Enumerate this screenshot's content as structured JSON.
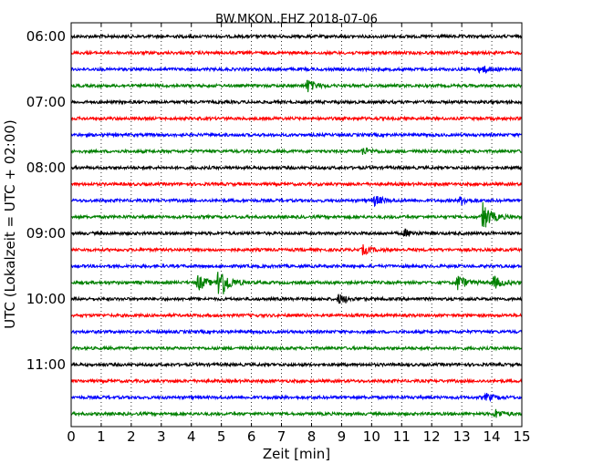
{
  "chart_data": {
    "type": "line",
    "title": "BW.MKON..EHZ 2018-07-06",
    "xlabel": "Zeit  [min]",
    "ylabel": "UTC (Lokalzeit = UTC + 02:00)",
    "xlim": [
      0,
      15
    ],
    "x_ticks": [
      "0",
      "1",
      "2",
      "3",
      "4",
      "5",
      "6",
      "7",
      "8",
      "9",
      "10",
      "11",
      "12",
      "13",
      "14",
      "15"
    ],
    "y_tick_labels": [
      "06:00",
      "07:00",
      "08:00",
      "09:00",
      "10:00",
      "11:00"
    ],
    "grid": "vertical dotted",
    "trace_interval_min": 15,
    "series": [
      {
        "start": "06:00",
        "color": "#000000",
        "events": []
      },
      {
        "start": "06:15",
        "color": "#ff0000",
        "events": []
      },
      {
        "start": "06:30",
        "color": "#0000ff",
        "events": [
          {
            "t": 13.6,
            "amp": 0.3
          }
        ]
      },
      {
        "start": "06:45",
        "color": "#008000",
        "events": [
          {
            "t": 7.85,
            "amp": 0.45
          }
        ]
      },
      {
        "start": "07:00",
        "color": "#000000",
        "events": []
      },
      {
        "start": "07:15",
        "color": "#ff0000",
        "events": []
      },
      {
        "start": "07:30",
        "color": "#0000ff",
        "events": []
      },
      {
        "start": "07:45",
        "color": "#008000",
        "events": [
          {
            "t": 9.7,
            "amp": 0.25
          }
        ]
      },
      {
        "start": "08:00",
        "color": "#000000",
        "events": []
      },
      {
        "start": "08:15",
        "color": "#ff0000",
        "events": []
      },
      {
        "start": "08:30",
        "color": "#0000ff",
        "events": [
          {
            "t": 10.1,
            "amp": 0.35
          },
          {
            "t": 12.95,
            "amp": 0.3
          }
        ]
      },
      {
        "start": "08:45",
        "color": "#008000",
        "events": [
          {
            "t": 13.7,
            "amp": 1.0
          }
        ]
      },
      {
        "start": "09:00",
        "color": "#000000",
        "events": [
          {
            "t": 11.1,
            "amp": 0.25
          }
        ]
      },
      {
        "start": "09:15",
        "color": "#ff0000",
        "events": [
          {
            "t": 9.7,
            "amp": 0.3
          }
        ]
      },
      {
        "start": "09:30",
        "color": "#0000ff",
        "events": []
      },
      {
        "start": "09:45",
        "color": "#008000",
        "events": [
          {
            "t": 4.2,
            "amp": 0.6
          },
          {
            "t": 4.9,
            "amp": 1.5
          },
          {
            "t": 12.85,
            "amp": 0.55
          },
          {
            "t": 14.05,
            "amp": 0.45
          }
        ]
      },
      {
        "start": "10:00",
        "color": "#000000",
        "events": [
          {
            "t": 8.9,
            "amp": 0.35
          }
        ]
      },
      {
        "start": "10:15",
        "color": "#ff0000",
        "events": []
      },
      {
        "start": "10:30",
        "color": "#0000ff",
        "events": []
      },
      {
        "start": "10:45",
        "color": "#008000",
        "events": []
      },
      {
        "start": "11:00",
        "color": "#000000",
        "events": []
      },
      {
        "start": "11:15",
        "color": "#ff0000",
        "events": []
      },
      {
        "start": "11:30",
        "color": "#0000ff",
        "events": [
          {
            "t": 13.8,
            "amp": 0.25
          }
        ]
      },
      {
        "start": "11:45",
        "color": "#008000",
        "events": [
          {
            "t": 14.1,
            "amp": 0.3
          }
        ]
      }
    ]
  }
}
